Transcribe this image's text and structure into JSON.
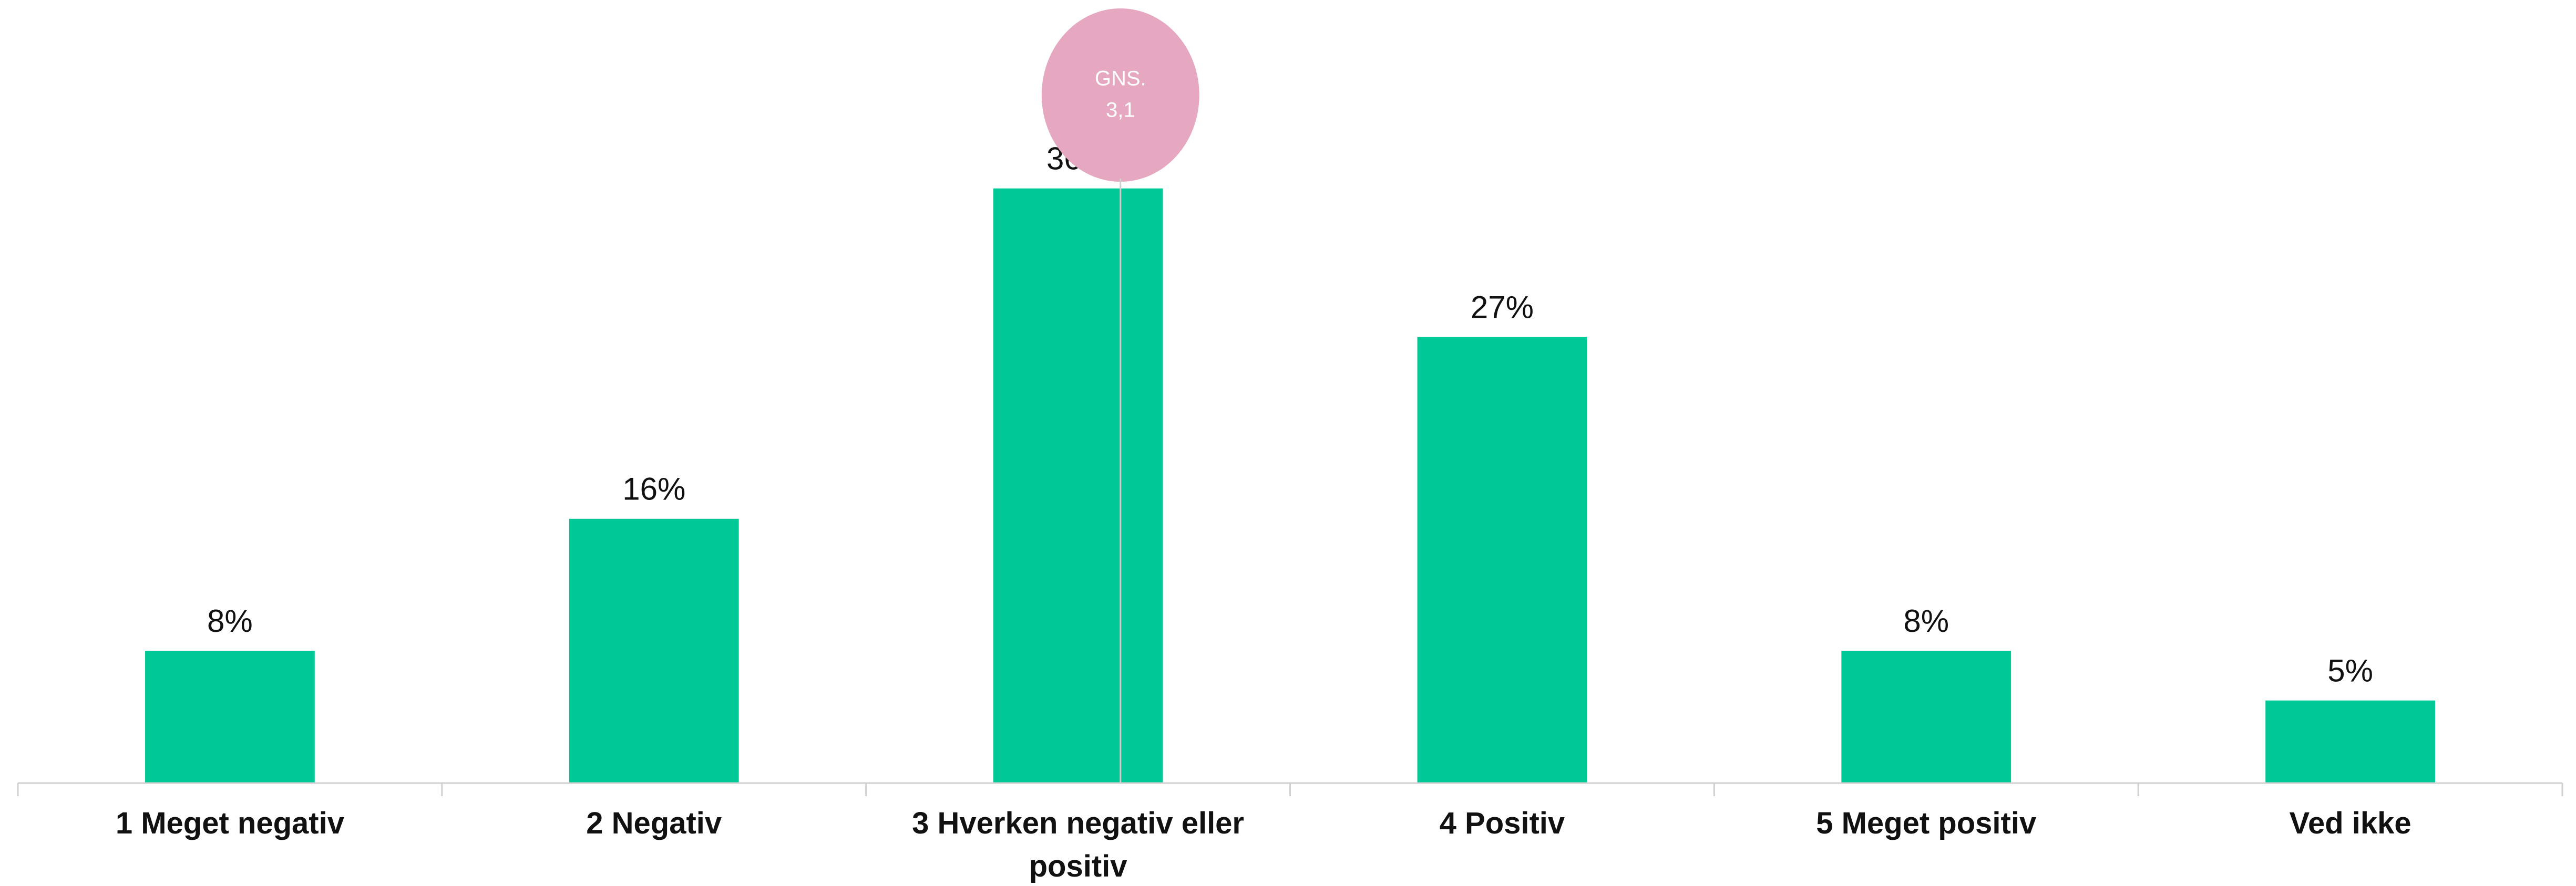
{
  "chart_data": {
    "type": "bar",
    "categories": [
      "1 Meget negativ",
      "2 Negativ",
      "3 Hverken negativ eller positiv",
      "4 Positiv",
      "5 Meget positiv",
      "Ved ikke"
    ],
    "values": [
      8,
      16,
      36,
      27,
      8,
      5
    ],
    "value_labels": [
      "8%",
      "16%",
      "36%",
      "27%",
      "8%",
      "5%"
    ],
    "color": "#00c896",
    "ylim": [
      0,
      40
    ],
    "mean": {
      "value": 3.1,
      "text": [
        "GNS.",
        "3,1"
      ],
      "color": "#e6a8c0"
    }
  }
}
